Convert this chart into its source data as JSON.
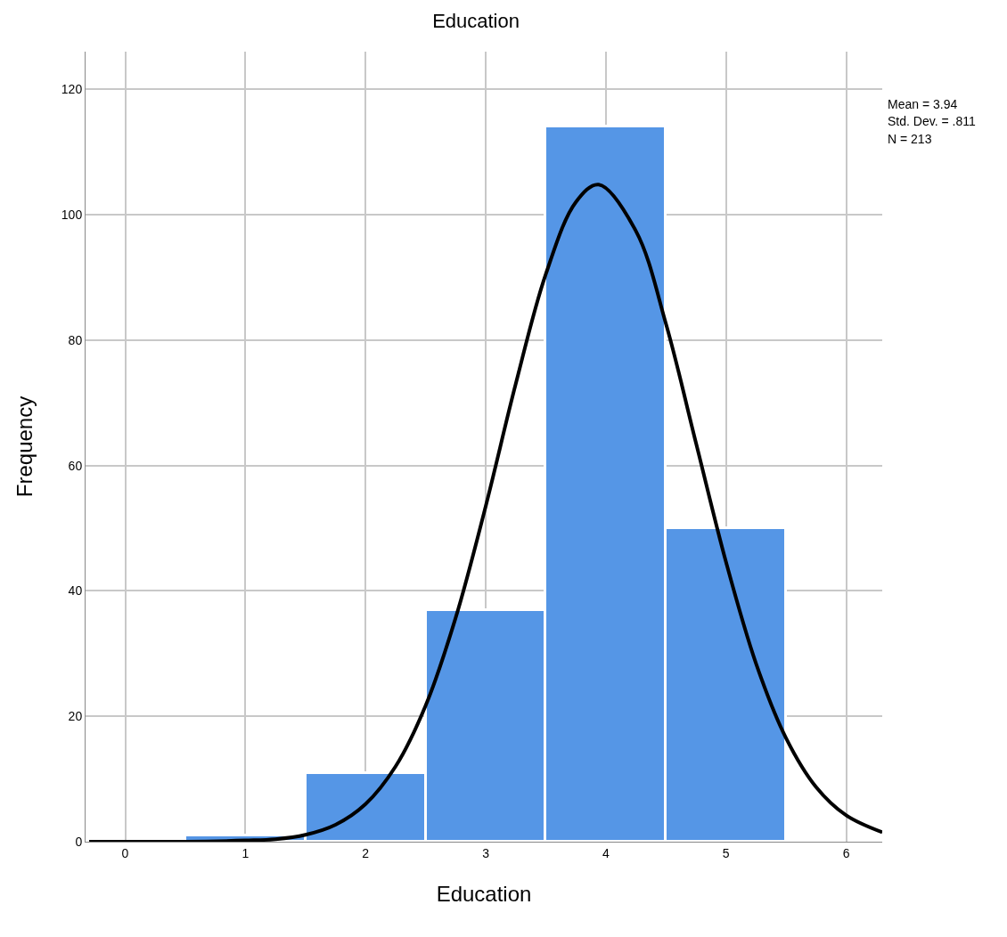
{
  "chart_data": {
    "type": "histogram",
    "title": "Education",
    "xlabel": "Education",
    "ylabel": "Frequency",
    "bins": [
      0.5,
      1.5,
      2.5,
      3.5,
      4.5,
      5.5
    ],
    "values": [
      1,
      11,
      37,
      114,
      50
    ],
    "color": "#5596e6",
    "series": [
      {
        "type": "line",
        "color": "#000000",
        "x": [
          -0.3,
          0,
          0.5,
          1,
          1.25,
          1.5,
          1.75,
          2,
          2.25,
          2.5,
          2.75,
          3,
          3.25,
          3.5,
          3.75,
          3.94,
          4.25,
          4.5,
          4.75,
          5,
          5.25,
          5.5,
          5.75,
          6,
          6.3
        ],
        "values": [
          0,
          0,
          0,
          0.2,
          0.4,
          1.1,
          2.7,
          6,
          12,
          21.7,
          35.7,
          53.5,
          73,
          90.5,
          102,
          104.8,
          97.4,
          82.6,
          63.6,
          44.6,
          28.4,
          16.5,
          8.7,
          4.2,
          1.5
        ]
      }
    ],
    "xlim": [
      -0.33,
      6.3
    ],
    "xticks": [
      0,
      1,
      2,
      3,
      4,
      5,
      6
    ],
    "ylim": [
      0,
      126
    ],
    "yticks": [
      0,
      20,
      40,
      60,
      80,
      100,
      120
    ],
    "grid": true,
    "marker": "none",
    "line_style": "solid",
    "annotations": [
      "Mean = 3.94",
      "Std. Dev. = .811",
      "N = 213"
    ]
  }
}
